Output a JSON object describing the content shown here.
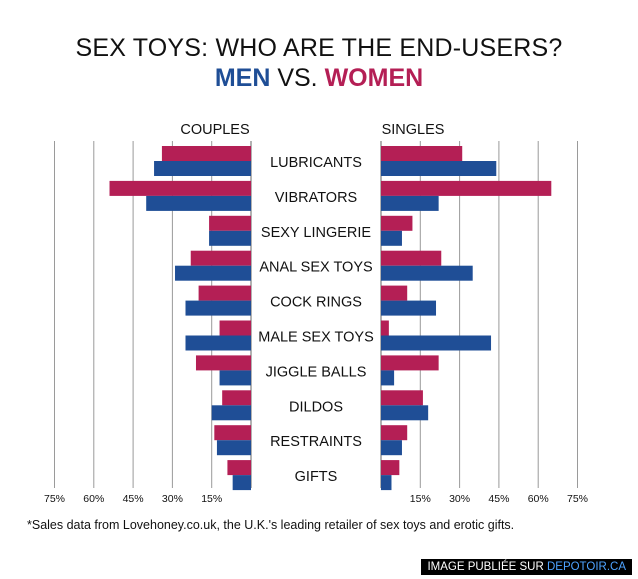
{
  "header": {
    "title": "SEX TOYS: WHO ARE THE END-USERS?",
    "men_label": "MEN",
    "vs_label": "VS.",
    "women_label": "WOMEN"
  },
  "footnote": "*Sales data from Lovehoney.co.uk, the U.K.'s leading retailer of sex toys and erotic gifts.",
  "credit": {
    "prefix": "IMAGE PUBLIÉE SUR ",
    "site": "DEPOTOIR.CA"
  },
  "colors": {
    "men": "#1f4e96",
    "women": "#b41f55",
    "grid": "#9a9a9a"
  },
  "chart_data": {
    "type": "bar",
    "title": "SEX TOYS: WHO ARE THE END-USERS?",
    "categories": [
      "LUBRICANTS",
      "VIBRATORS",
      "SEXY LINGERIE",
      "ANAL SEX TOYS",
      "COCK RINGS",
      "MALE SEX TOYS",
      "JIGGLE BALLS",
      "DILDOS",
      "RESTRAINTS",
      "GIFTS"
    ],
    "panels": [
      {
        "name": "COUPLES",
        "direction": "left",
        "series": [
          {
            "name": "WOMEN",
            "values": [
              34,
              54,
              16,
              23,
              20,
              12,
              21,
              11,
              14,
              9
            ]
          },
          {
            "name": "MEN",
            "values": [
              37,
              40,
              16,
              29,
              25,
              25,
              12,
              15,
              13,
              7
            ]
          }
        ]
      },
      {
        "name": "SINGLES",
        "direction": "right",
        "series": [
          {
            "name": "WOMEN",
            "values": [
              31,
              65,
              12,
              23,
              10,
              3,
              22,
              16,
              10,
              7
            ]
          },
          {
            "name": "MEN",
            "values": [
              44,
              22,
              8,
              35,
              21,
              42,
              5,
              18,
              8,
              4
            ]
          }
        ]
      }
    ],
    "xlim": [
      0,
      75
    ],
    "left_ticks": [
      "75%",
      "60%",
      "45%",
      "30%",
      "15%"
    ],
    "right_ticks": [
      "15%",
      "30%",
      "45%",
      "60%",
      "75%"
    ],
    "grid": true
  }
}
